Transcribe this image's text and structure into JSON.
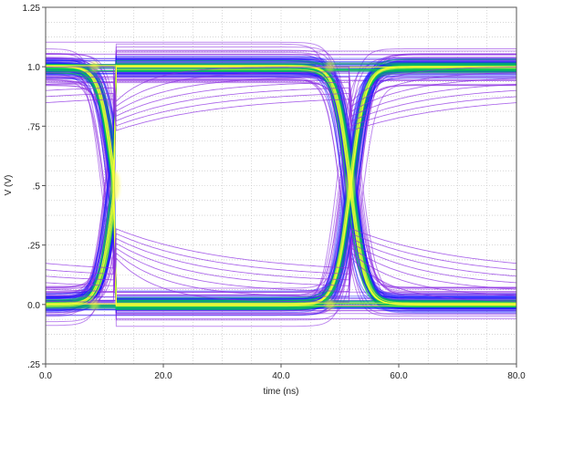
{
  "chart_data": {
    "type": "line",
    "title": "",
    "xlabel": "time (ns)",
    "ylabel": "V (V)",
    "xlim": [
      0,
      80
    ],
    "ylim": [
      -0.25,
      1.25
    ],
    "x_ticks": [
      0,
      20,
      40,
      60,
      80
    ],
    "x_tick_labels": [
      "0.0",
      "20.0",
      "40.0",
      "60.0",
      "80.0"
    ],
    "y_ticks": [
      -0.25,
      0,
      0.25,
      0.5,
      0.75,
      1.0,
      1.25
    ],
    "y_tick_labels": [
      ".25",
      "0.0",
      ".25",
      ".5",
      ".75",
      "1.0",
      "1.25"
    ],
    "grid": true,
    "legend": "none",
    "description_free": true,
    "eye_pattern": {
      "unit_interval_ns": 40,
      "crossing_times_ns": [
        11.8,
        51.8
      ],
      "crossing_level_v": 0.5,
      "high_level_v": 1.0,
      "low_level_v": 0.0,
      "high_band_v": [
        0.85,
        1.16
      ],
      "low_band_v": [
        -0.17,
        0.19
      ],
      "transition_width_ns": [
        5.5,
        14.5
      ]
    },
    "colors": {
      "density_low": "#8a2be2",
      "density_mid": "#1a1aff",
      "density_high": "#00c853",
      "density_peak": "#ffff33",
      "grid": "#bdbdbd"
    }
  }
}
